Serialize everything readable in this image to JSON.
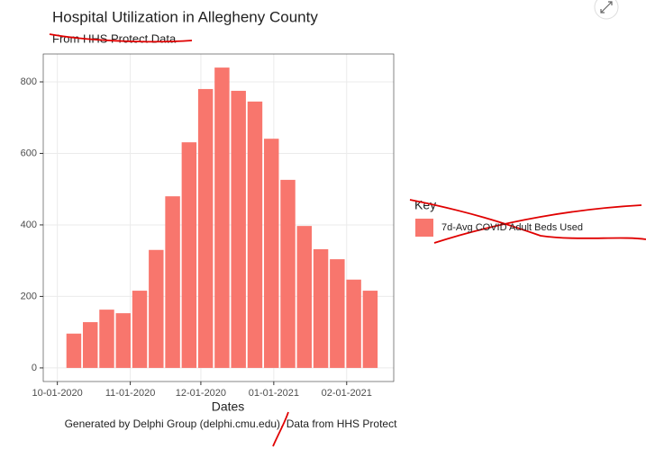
{
  "chart_data": {
    "type": "bar",
    "title": "Hospital Utilization in Allegheny County",
    "subtitle": "From HHS Protect Data",
    "x_label": "Dates",
    "caption": "Generated by Delphi Group (delphi.cmu.edu). Data from HHS Protect",
    "legend_title": "Key",
    "series": [
      {
        "name": "7d-Avg COVID Adult Beds Used",
        "color": "#f8766d",
        "values": [
          96,
          128,
          163,
          153,
          216,
          330,
          480,
          631,
          780,
          840,
          775,
          745,
          641,
          526,
          397,
          332,
          304,
          247,
          216
        ]
      }
    ],
    "x": [
      "2020-10-08",
      "2020-10-15",
      "2020-10-22",
      "2020-10-29",
      "2020-11-05",
      "2020-11-12",
      "2020-11-19",
      "2020-11-26",
      "2020-12-03",
      "2020-12-10",
      "2020-12-17",
      "2020-12-24",
      "2020-12-31",
      "2021-01-07",
      "2021-01-14",
      "2021-01-21",
      "2021-01-28",
      "2021-02-04",
      "2021-02-11"
    ],
    "xlim": [
      "2020-09-25",
      "2021-02-21"
    ],
    "xticks": [
      {
        "value": "2020-10-01",
        "label": "10-01-2020"
      },
      {
        "value": "2020-11-01",
        "label": "11-01-2020"
      },
      {
        "value": "2020-12-01",
        "label": "12-01-2020"
      },
      {
        "value": "2021-01-01",
        "label": "01-01-2021"
      },
      {
        "value": "2021-02-01",
        "label": "02-01-2021"
      }
    ],
    "ylim": [
      -38,
      878
    ],
    "yticks": [
      0,
      200,
      400,
      600,
      800
    ],
    "grid": true,
    "legend": "right"
  }
}
